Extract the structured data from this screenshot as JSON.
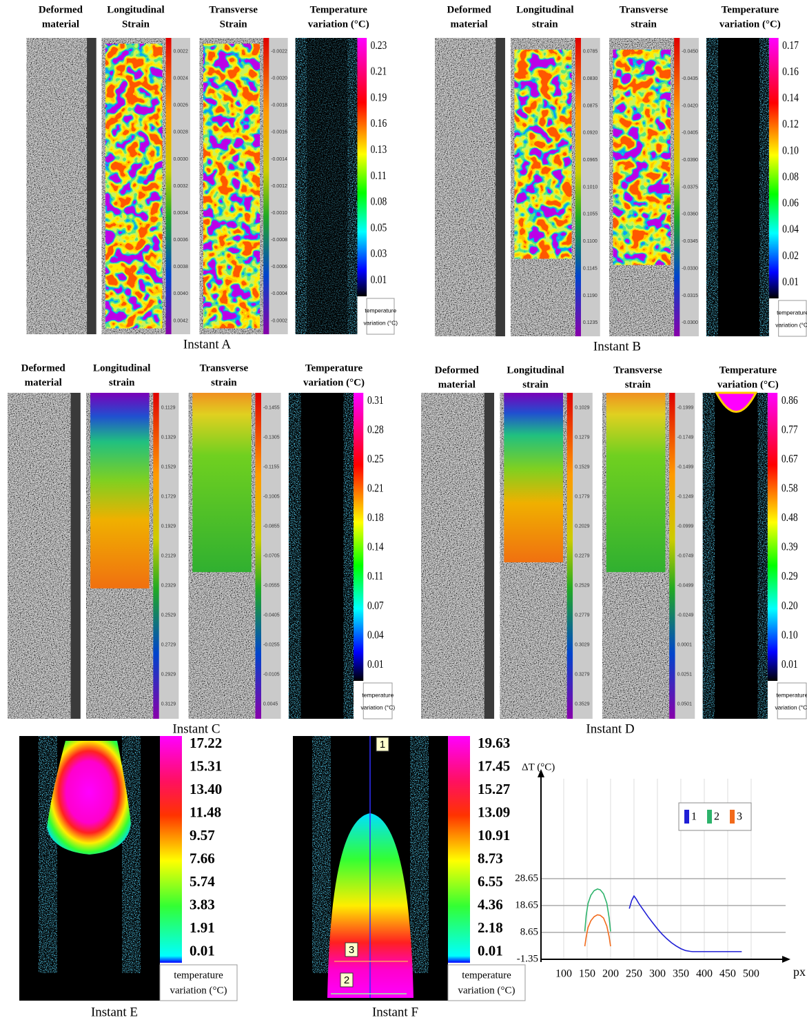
{
  "panels": [
    {
      "caption": "Instant A",
      "headers": [
        [
          "Deformed",
          "material"
        ],
        [
          "Longitudinal",
          "Strain"
        ],
        [
          "Transverse",
          "Strain"
        ],
        [
          "Temperature",
          "variation (°C)"
        ]
      ],
      "longitudinal_scale": [
        "0.0022",
        "0.0024",
        "0.0026",
        "0.0028",
        "0.0030",
        "0.0032",
        "0.0034",
        "0.0036",
        "0.0038",
        "0.0040",
        "0.0042"
      ],
      "transverse_scale": [
        "-0.0022",
        "-0.0020",
        "-0.0018",
        "-0.0016",
        "-0.0014",
        "-0.0012",
        "-0.0010",
        "-0.0008",
        "-0.0006",
        "-0.0004",
        "-0.0002"
      ],
      "temperature_scale": [
        "0.23",
        "0.21",
        "0.19",
        "0.16",
        "0.13",
        "0.11",
        "0.08",
        "0.05",
        "0.03",
        "0.01"
      ],
      "temperature_legend": [
        "temperature",
        "variation (°C)"
      ]
    },
    {
      "caption": "Instant B",
      "headers": [
        [
          "Deformed",
          "material"
        ],
        [
          "Longitudinal",
          "strain"
        ],
        [
          "Transverse",
          "strain"
        ],
        [
          "Temperature",
          "variation (°C)"
        ]
      ],
      "longitudinal_scale": [
        "0.0785",
        "0.0830",
        "0.0875",
        "0.0920",
        "0.0965",
        "0.1010",
        "0.1055",
        "0.1100",
        "0.1145",
        "0.1190",
        "0.1235"
      ],
      "transverse_scale": [
        "-0.0450",
        "-0.0435",
        "-0.0420",
        "-0.0405",
        "-0.0390",
        "-0.0375",
        "-0.0360",
        "-0.0345",
        "-0.0330",
        "-0.0315",
        "-0.0300"
      ],
      "temperature_scale": [
        "0.17",
        "0.16",
        "0.14",
        "0.12",
        "0.10",
        "0.08",
        "0.06",
        "0.04",
        "0.02",
        "0.01"
      ],
      "temperature_legend": [
        "temperature",
        "variation (°C)"
      ]
    },
    {
      "caption": "Instant C",
      "headers": [
        [
          "Deformed",
          "material"
        ],
        [
          "Longitudinal",
          "strain"
        ],
        [
          "Transverse",
          "strain"
        ],
        [
          "Temperature",
          "variation (°C)"
        ]
      ],
      "longitudinal_scale": [
        "0.1129",
        "0.1329",
        "0.1529",
        "0.1729",
        "0.1929",
        "0.2129",
        "0.2329",
        "0.2529",
        "0.2729",
        "0.2929",
        "0.3129"
      ],
      "transverse_scale": [
        "-0.1455",
        "-0.1305",
        "-0.1155",
        "-0.1005",
        "-0.0855",
        "-0.0705",
        "-0.0555",
        "-0.0405",
        "-0.0255",
        "-0.0105",
        "0.0045"
      ],
      "temperature_scale": [
        "0.31",
        "0.28",
        "0.25",
        "0.21",
        "0.18",
        "0.14",
        "0.11",
        "0.07",
        "0.04",
        "0.01"
      ],
      "temperature_legend": [
        "temperature",
        "variation (°C)"
      ]
    },
    {
      "caption": "Instant D",
      "headers": [
        [
          "Deformed",
          "material"
        ],
        [
          "Longitudinal",
          "strain"
        ],
        [
          "Transverse",
          "strain"
        ],
        [
          "Temperature",
          "variation (°C)"
        ]
      ],
      "longitudinal_scale": [
        "0.1029",
        "0.1279",
        "0.1529",
        "0.1779",
        "0.2029",
        "0.2279",
        "0.2529",
        "0.2779",
        "0.3029",
        "0.3279",
        "0.3529"
      ],
      "transverse_scale": [
        "-0.1999",
        "-0.1749",
        "-0.1499",
        "-0.1249",
        "-0.0999",
        "-0.0749",
        "-0.0499",
        "-0.0249",
        "0.0001",
        "0.0251",
        "0.0501"
      ],
      "temperature_scale": [
        "0.86",
        "0.77",
        "0.67",
        "0.58",
        "0.48",
        "0.39",
        "0.29",
        "0.20",
        "0.10",
        "0.01"
      ],
      "temperature_legend": [
        "temperature",
        "variation (°C)"
      ]
    }
  ],
  "instant_e": {
    "caption": "Instant E",
    "temperature_scale": [
      "17.22",
      "15.31",
      "13.40",
      "11.48",
      "9.57",
      "7.66",
      "5.74",
      "3.83",
      "1.91",
      "0.01"
    ],
    "temperature_legend": [
      "temperature",
      "variation (°C)"
    ]
  },
  "instant_f": {
    "caption": "Instant F",
    "temperature_scale": [
      "19.63",
      "17.45",
      "15.27",
      "13.09",
      "10.91",
      "8.73",
      "6.55",
      "4.36",
      "2.18",
      "0.01"
    ],
    "temperature_legend": [
      "temperature",
      "variation (°C)"
    ],
    "profile_markers": [
      "1",
      "3",
      "2"
    ],
    "chart_data": {
      "type": "line",
      "y_label": "ΔT (°C)",
      "x_label": "px",
      "xlim": [
        51.5,
        581
      ],
      "xticks": [
        100,
        150,
        200,
        250,
        300,
        350,
        400,
        450,
        500
      ],
      "ylim": [
        -1.35,
        68.9
      ],
      "yticks": [
        -1.35,
        8.65,
        18.65,
        28.65
      ],
      "grid": true,
      "series": [
        {
          "name": "1",
          "color": "#1f1fd6",
          "x": [
            240,
            245,
            250,
            255,
            260,
            270,
            280,
            290,
            300,
            310,
            320,
            330,
            340,
            350,
            360,
            370,
            375,
            400,
            450,
            480
          ],
          "values": [
            17.5,
            20.5,
            22.2,
            21,
            19.5,
            17,
            14.5,
            12.2,
            10,
            8,
            6.3,
            4.8,
            3.6,
            2.6,
            1.9,
            1.6,
            1.5,
            1.5,
            1.5,
            1.5
          ]
        },
        {
          "name": "2",
          "color": "#2db36b",
          "x": [
            145,
            148,
            152,
            158,
            165,
            172,
            178,
            185,
            192,
            197,
            200
          ],
          "values": [
            9,
            15,
            19.5,
            22.5,
            24.2,
            24.8,
            24.5,
            23,
            19.5,
            14,
            9
          ]
        },
        {
          "name": "3",
          "color": "#f26a1b",
          "x": [
            145,
            148,
            152,
            158,
            165,
            172,
            178,
            185,
            192,
            197,
            200
          ],
          "values": [
            3.5,
            7,
            10.5,
            13,
            14.5,
            15.2,
            15,
            14,
            11,
            7,
            3.5
          ]
        }
      ]
    }
  }
}
